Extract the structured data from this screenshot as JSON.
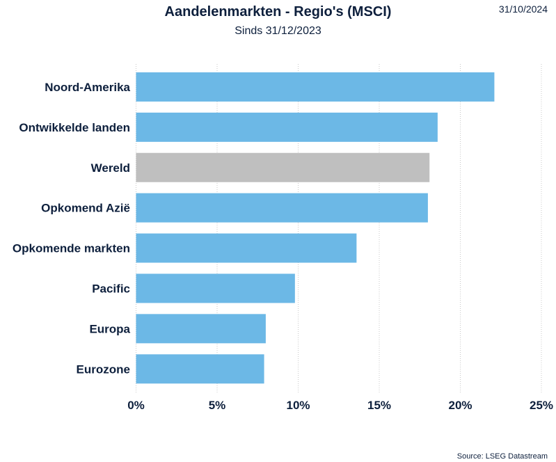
{
  "header": {
    "title": "Aandelenmarkten - Regio's (MSCI)",
    "subtitle": "Sinds 31/12/2023",
    "date": "31/10/2024"
  },
  "footer": {
    "source": "Source: LSEG Datastream"
  },
  "colors": {
    "bar": "#6cb8e6",
    "highlight": "#bfbfbf",
    "text": "#0d1f3c"
  },
  "chart_data": {
    "type": "bar",
    "orientation": "horizontal",
    "title": "Aandelenmarkten - Regio's (MSCI)",
    "subtitle": "Sinds 31/12/2023",
    "categories": [
      "Noord-Amerika",
      "Ontwikkelde landen",
      "Wereld",
      "Opkomend Azië",
      "Opkomende markten",
      "Pacific",
      "Europa",
      "Eurozone"
    ],
    "values": [
      22.1,
      18.6,
      18.1,
      18.0,
      13.6,
      9.8,
      8.0,
      7.9
    ],
    "highlight": [
      "Wereld"
    ],
    "xlim": [
      0,
      25
    ],
    "xticks": [
      "0%",
      "5%",
      "10%",
      "15%",
      "20%",
      "25%"
    ],
    "grid": "vertical dotted",
    "xlabel": "",
    "ylabel": ""
  }
}
